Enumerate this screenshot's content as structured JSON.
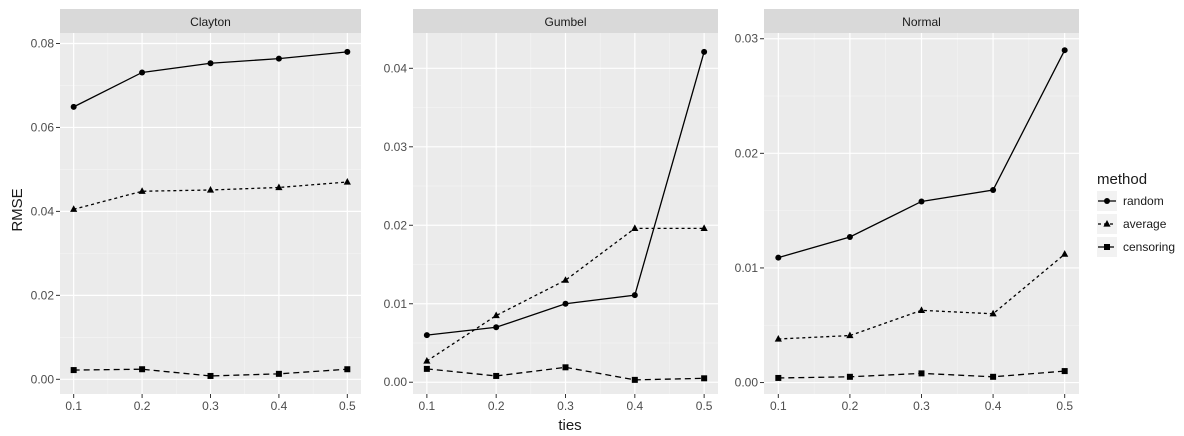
{
  "chart_data": {
    "type": "line",
    "xlabel": "ties",
    "ylabel": "RMSE",
    "x": [
      0.1,
      0.2,
      0.3,
      0.4,
      0.5
    ],
    "x_tick_labels": [
      "0.1",
      "0.2",
      "0.3",
      "0.4",
      "0.5"
    ],
    "legend_title": "method",
    "legend_position": "right",
    "grid": true,
    "panels": [
      {
        "title": "Clayton",
        "ylim": [
          -0.0035,
          0.0825
        ],
        "y_ticks": [
          0.0,
          0.02,
          0.04,
          0.06,
          0.08
        ],
        "y_tick_labels": [
          "0.00",
          "0.02",
          "0.04",
          "0.06",
          "0.08"
        ],
        "series": [
          {
            "name": "random",
            "values": [
              0.0649,
              0.0731,
              0.0753,
              0.0764,
              0.078
            ]
          },
          {
            "name": "average",
            "values": [
              0.0405,
              0.0448,
              0.0451,
              0.0457,
              0.047
            ]
          },
          {
            "name": "censoring",
            "values": [
              0.0022,
              0.0024,
              0.0008,
              0.0013,
              0.0024
            ]
          }
        ]
      },
      {
        "title": "Gumbel",
        "ylim": [
          -0.0015,
          0.0445
        ],
        "y_ticks": [
          0.0,
          0.01,
          0.02,
          0.03,
          0.04
        ],
        "y_tick_labels": [
          "0.00",
          "0.01",
          "0.02",
          "0.03",
          "0.04"
        ],
        "series": [
          {
            "name": "random",
            "values": [
              0.006,
              0.007,
              0.01,
              0.0111,
              0.0421
            ]
          },
          {
            "name": "average",
            "values": [
              0.0027,
              0.0085,
              0.013,
              0.0196,
              0.0196
            ]
          },
          {
            "name": "censoring",
            "values": [
              0.0017,
              0.0008,
              0.0019,
              0.0003,
              0.0005
            ]
          }
        ]
      },
      {
        "title": "Normal",
        "ylim": [
          -0.001,
          0.0305
        ],
        "y_ticks": [
          0.0,
          0.01,
          0.02,
          0.03
        ],
        "y_tick_labels": [
          "0.00",
          "0.01",
          "0.02",
          "0.03"
        ],
        "series": [
          {
            "name": "random",
            "values": [
              0.0109,
              0.0127,
              0.0158,
              0.0168,
              0.029
            ]
          },
          {
            "name": "average",
            "values": [
              0.0038,
              0.0041,
              0.0063,
              0.006,
              0.0112
            ]
          },
          {
            "name": "censoring",
            "values": [
              0.0004,
              0.0005,
              0.0008,
              0.0005,
              0.001
            ]
          }
        ]
      }
    ],
    "legend": [
      {
        "name": "random",
        "linetype": "solid",
        "shape": "circle"
      },
      {
        "name": "average",
        "linetype": "dotted",
        "shape": "triangle"
      },
      {
        "name": "censoring",
        "linetype": "dashed",
        "shape": "square"
      }
    ],
    "colors": {
      "panel_bg": "#ebebeb",
      "strip_bg": "#d9d9d9",
      "grid_major": "#ffffff",
      "series": "#000000",
      "text": "#1a1a1a",
      "tick_text": "#4d4d4d"
    }
  }
}
